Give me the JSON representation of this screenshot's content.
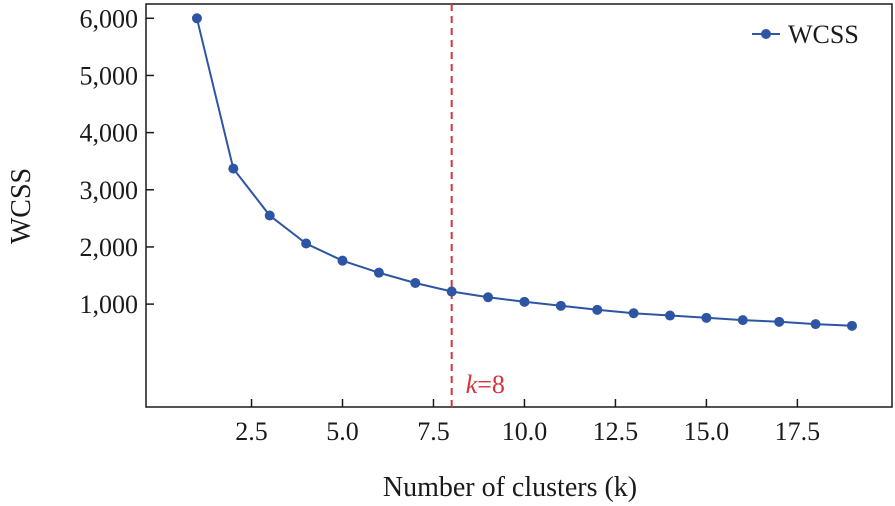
{
  "chart_data": {
    "type": "line",
    "xlabel": "Number of clusters (k)",
    "ylabel": "WCSS",
    "xlim": [
      -0.4,
      20.1
    ],
    "ylim": [
      -800,
      6250
    ],
    "xticks": [
      2.5,
      5.0,
      7.5,
      10.0,
      12.5,
      15.0,
      17.5
    ],
    "xtick_labels": [
      "2.5",
      "5.0",
      "7.5",
      "10.0",
      "12.5",
      "15.0",
      "17.5"
    ],
    "yticks": [
      1000,
      2000,
      3000,
      4000,
      5000,
      6000
    ],
    "ytick_labels": [
      "1,000",
      "2,000",
      "3,000",
      "4,000",
      "5,000",
      "6,000"
    ],
    "legend_position": "top-right",
    "grid": false,
    "series": [
      {
        "name": "WCSS",
        "color": "#2e55a3",
        "x": [
          1,
          2,
          3,
          4,
          5,
          6,
          7,
          8,
          9,
          10,
          11,
          12,
          13,
          14,
          15,
          16,
          17,
          18,
          19
        ],
        "y": [
          6000,
          3370,
          2550,
          2060,
          1760,
          1550,
          1370,
          1220,
          1120,
          1040,
          970,
          900,
          840,
          800,
          760,
          720,
          690,
          650,
          620
        ]
      }
    ],
    "annotations": [
      {
        "type": "vline",
        "x": 8,
        "color": "#d6333a",
        "style": "dashed",
        "label": "k=8",
        "label_var": "k",
        "label_rest": "=8"
      }
    ]
  }
}
